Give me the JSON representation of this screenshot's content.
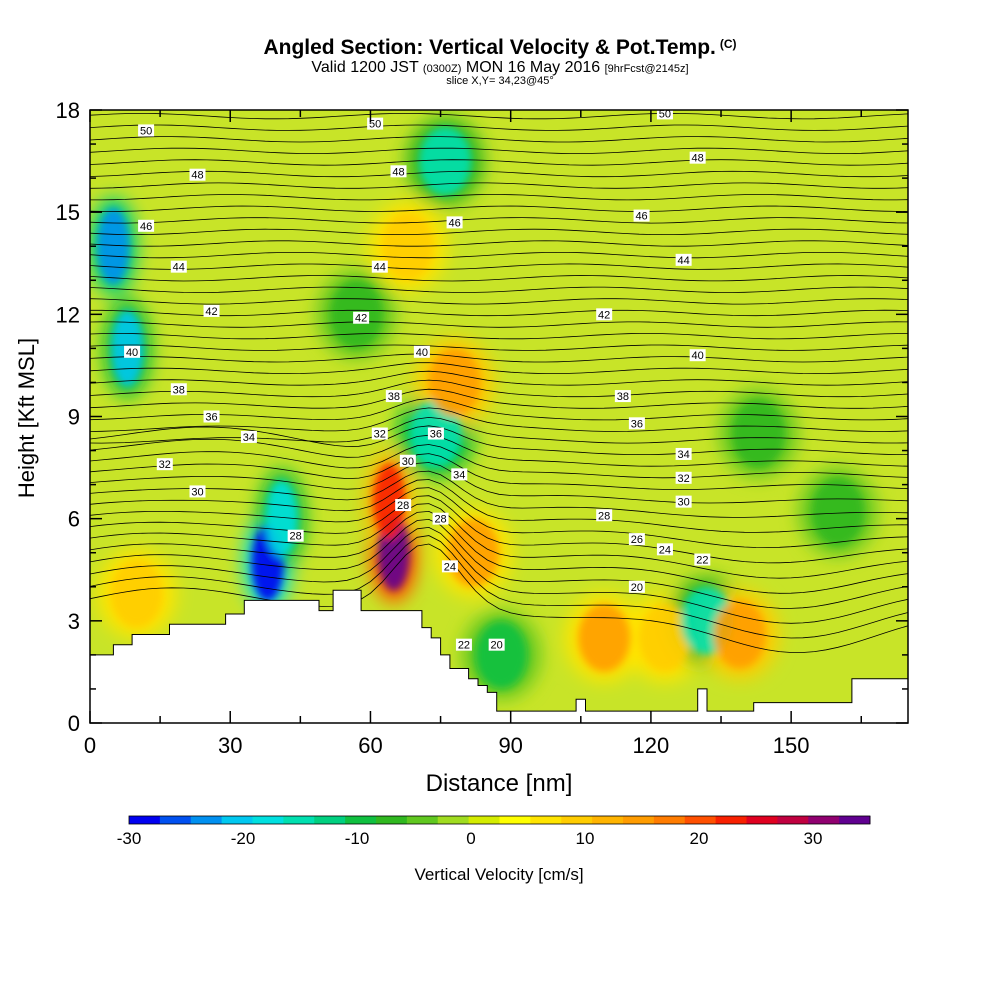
{
  "title": {
    "main": "Angled Section: Vertical Velocity & Pot.Temp.",
    "copyright": "(C)",
    "valid_prefix": "Valid 1200 JST",
    "valid_z": "(0300Z)",
    "valid_date": "MON 16 May 2016",
    "valid_fcst": "[9hrFcst@2145z]",
    "slice": "slice X,Y= 34,23@45°"
  },
  "chart_data": {
    "type": "heatmap",
    "xlabel": "Distance [nm]",
    "ylabel": "Height [Kft MSL]",
    "xlim": [
      0,
      175
    ],
    "ylim": [
      0,
      18
    ],
    "x_ticks": [
      0,
      30,
      60,
      90,
      120,
      150
    ],
    "y_ticks": [
      0,
      3,
      6,
      9,
      12,
      15,
      18
    ],
    "colorbar": {
      "label": "Vertical Velocity [cm/s]",
      "range": [
        -30,
        35
      ],
      "ticks": [
        -30,
        -20,
        -10,
        0,
        10,
        20,
        30
      ],
      "colors": [
        "#0000f0",
        "#0050f0",
        "#0090f0",
        "#00c8f0",
        "#00e0e0",
        "#00e0b0",
        "#00d080",
        "#10c040",
        "#30b820",
        "#60c820",
        "#a0dc20",
        "#d4ec00",
        "#ffff00",
        "#ffe400",
        "#ffcc00",
        "#ffb400",
        "#ff9c00",
        "#ff7c00",
        "#ff5000",
        "#f82000",
        "#e00020",
        "#c00040",
        "#900070",
        "#600090"
      ]
    },
    "terrain_kft": [
      [
        0,
        2
      ],
      [
        5,
        2
      ],
      [
        5,
        2.3
      ],
      [
        9,
        2.3
      ],
      [
        9,
        2.6
      ],
      [
        17,
        2.6
      ],
      [
        17,
        2.9
      ],
      [
        29,
        2.9
      ],
      [
        29,
        3.2
      ],
      [
        33,
        3.2
      ],
      [
        33,
        3.6
      ],
      [
        49,
        3.6
      ],
      [
        49,
        3.3
      ],
      [
        52,
        3.3
      ],
      [
        52,
        3.9
      ],
      [
        58,
        3.9
      ],
      [
        58,
        3.3
      ],
      [
        71,
        3.3
      ],
      [
        71,
        2.8
      ],
      [
        73,
        2.8
      ],
      [
        73,
        2.5
      ],
      [
        75,
        2.5
      ],
      [
        75,
        2.0
      ],
      [
        77,
        2.0
      ],
      [
        77,
        1.6
      ],
      [
        81,
        1.6
      ],
      [
        81,
        1.3
      ],
      [
        83,
        1.3
      ],
      [
        83,
        1.1
      ],
      [
        85,
        1.1
      ],
      [
        85,
        0.9
      ],
      [
        87,
        0.9
      ],
      [
        87,
        0.35
      ],
      [
        104,
        0.35
      ],
      [
        104,
        0.7
      ],
      [
        106,
        0.7
      ],
      [
        106,
        0.35
      ],
      [
        130,
        0.35
      ],
      [
        130,
        1
      ],
      [
        132,
        1
      ],
      [
        132,
        0.35
      ],
      [
        142,
        0.35
      ],
      [
        142,
        0.6
      ],
      [
        163,
        0.6
      ],
      [
        163,
        1.3
      ],
      [
        175,
        1.3
      ]
    ],
    "vertical_velocity_features": [
      {
        "x": 5,
        "z": 14,
        "value": -22
      },
      {
        "x": 8,
        "z": 11,
        "value": -20
      },
      {
        "x": 38,
        "z": 4.7,
        "value": -32
      },
      {
        "x": 41,
        "z": 6,
        "value": -18
      },
      {
        "x": 65,
        "z": 5,
        "value": 35
      },
      {
        "x": 64,
        "z": 6.5,
        "value": 22
      },
      {
        "x": 74,
        "z": 8.5,
        "value": -16
      },
      {
        "x": 78,
        "z": 10,
        "value": 16
      },
      {
        "x": 68,
        "z": 14,
        "value": 10
      },
      {
        "x": 76,
        "z": 16.5,
        "value": -14
      },
      {
        "x": 57,
        "z": 12,
        "value": -8
      },
      {
        "x": 82,
        "z": 5,
        "value": 14
      },
      {
        "x": 110,
        "z": 2.5,
        "value": 14
      },
      {
        "x": 123,
        "z": 2.5,
        "value": 10
      },
      {
        "x": 132,
        "z": 3,
        "value": -14
      },
      {
        "x": 139,
        "z": 2.6,
        "value": 16
      },
      {
        "x": 88,
        "z": 2.0,
        "value": -10
      },
      {
        "x": 10,
        "z": 3.8,
        "value": 10
      },
      {
        "x": 143,
        "z": 8.5,
        "value": -8
      },
      {
        "x": 160,
        "z": 6.2,
        "value": -6
      }
    ],
    "isentropes_label_c": [
      "50",
      "48",
      "46",
      "44",
      "42",
      "40",
      "38",
      "36",
      "34",
      "32",
      "30",
      "28",
      "26",
      "24",
      "22",
      "20"
    ],
    "isentrope_labels": [
      {
        "text": "50",
        "x": 12,
        "z": 17.4
      },
      {
        "text": "50",
        "x": 61,
        "z": 17.6
      },
      {
        "text": "50",
        "x": 123,
        "z": 17.9
      },
      {
        "text": "48",
        "x": 23,
        "z": 16.1
      },
      {
        "text": "48",
        "x": 66,
        "z": 16.2
      },
      {
        "text": "48",
        "x": 130,
        "z": 16.6
      },
      {
        "text": "46",
        "x": 12,
        "z": 14.6
      },
      {
        "text": "46",
        "x": 78,
        "z": 14.7
      },
      {
        "text": "46",
        "x": 118,
        "z": 14.9
      },
      {
        "text": "44",
        "x": 19,
        "z": 13.4
      },
      {
        "text": "44",
        "x": 62,
        "z": 13.4
      },
      {
        "text": "44",
        "x": 127,
        "z": 13.6
      },
      {
        "text": "42",
        "x": 26,
        "z": 12.1
      },
      {
        "text": "42",
        "x": 58,
        "z": 11.9
      },
      {
        "text": "42",
        "x": 110,
        "z": 12.0
      },
      {
        "text": "40",
        "x": 9,
        "z": 10.9
      },
      {
        "text": "40",
        "x": 71,
        "z": 10.9
      },
      {
        "text": "40",
        "x": 130,
        "z": 10.8
      },
      {
        "text": "38",
        "x": 19,
        "z": 9.8
      },
      {
        "text": "38",
        "x": 65,
        "z": 9.6
      },
      {
        "text": "38",
        "x": 114,
        "z": 9.6
      },
      {
        "text": "36",
        "x": 26,
        "z": 9.0
      },
      {
        "text": "36",
        "x": 74,
        "z": 8.5
      },
      {
        "text": "36",
        "x": 117,
        "z": 8.8
      },
      {
        "text": "34",
        "x": 34,
        "z": 8.4
      },
      {
        "text": "34",
        "x": 79,
        "z": 7.3
      },
      {
        "text": "34",
        "x": 127,
        "z": 7.9
      },
      {
        "text": "32",
        "x": 16,
        "z": 7.6
      },
      {
        "text": "32",
        "x": 62,
        "z": 8.5
      },
      {
        "text": "32",
        "x": 127,
        "z": 7.2
      },
      {
        "text": "30",
        "x": 23,
        "z": 6.8
      },
      {
        "text": "30",
        "x": 68,
        "z": 7.7
      },
      {
        "text": "30",
        "x": 127,
        "z": 6.5
      },
      {
        "text": "28",
        "x": 44,
        "z": 5.5
      },
      {
        "text": "28",
        "x": 67,
        "z": 6.4
      },
      {
        "text": "28",
        "x": 75,
        "z": 6.0
      },
      {
        "text": "28",
        "x": 110,
        "z": 6.1
      },
      {
        "text": "26",
        "x": 117,
        "z": 5.4
      },
      {
        "text": "24",
        "x": 77,
        "z": 4.6
      },
      {
        "text": "24",
        "x": 123,
        "z": 5.1
      },
      {
        "text": "22",
        "x": 80,
        "z": 2.3
      },
      {
        "text": "22",
        "x": 131,
        "z": 4.8
      },
      {
        "text": "20",
        "x": 87,
        "z": 2.3
      },
      {
        "text": "20",
        "x": 117,
        "z": 4.0
      }
    ]
  }
}
